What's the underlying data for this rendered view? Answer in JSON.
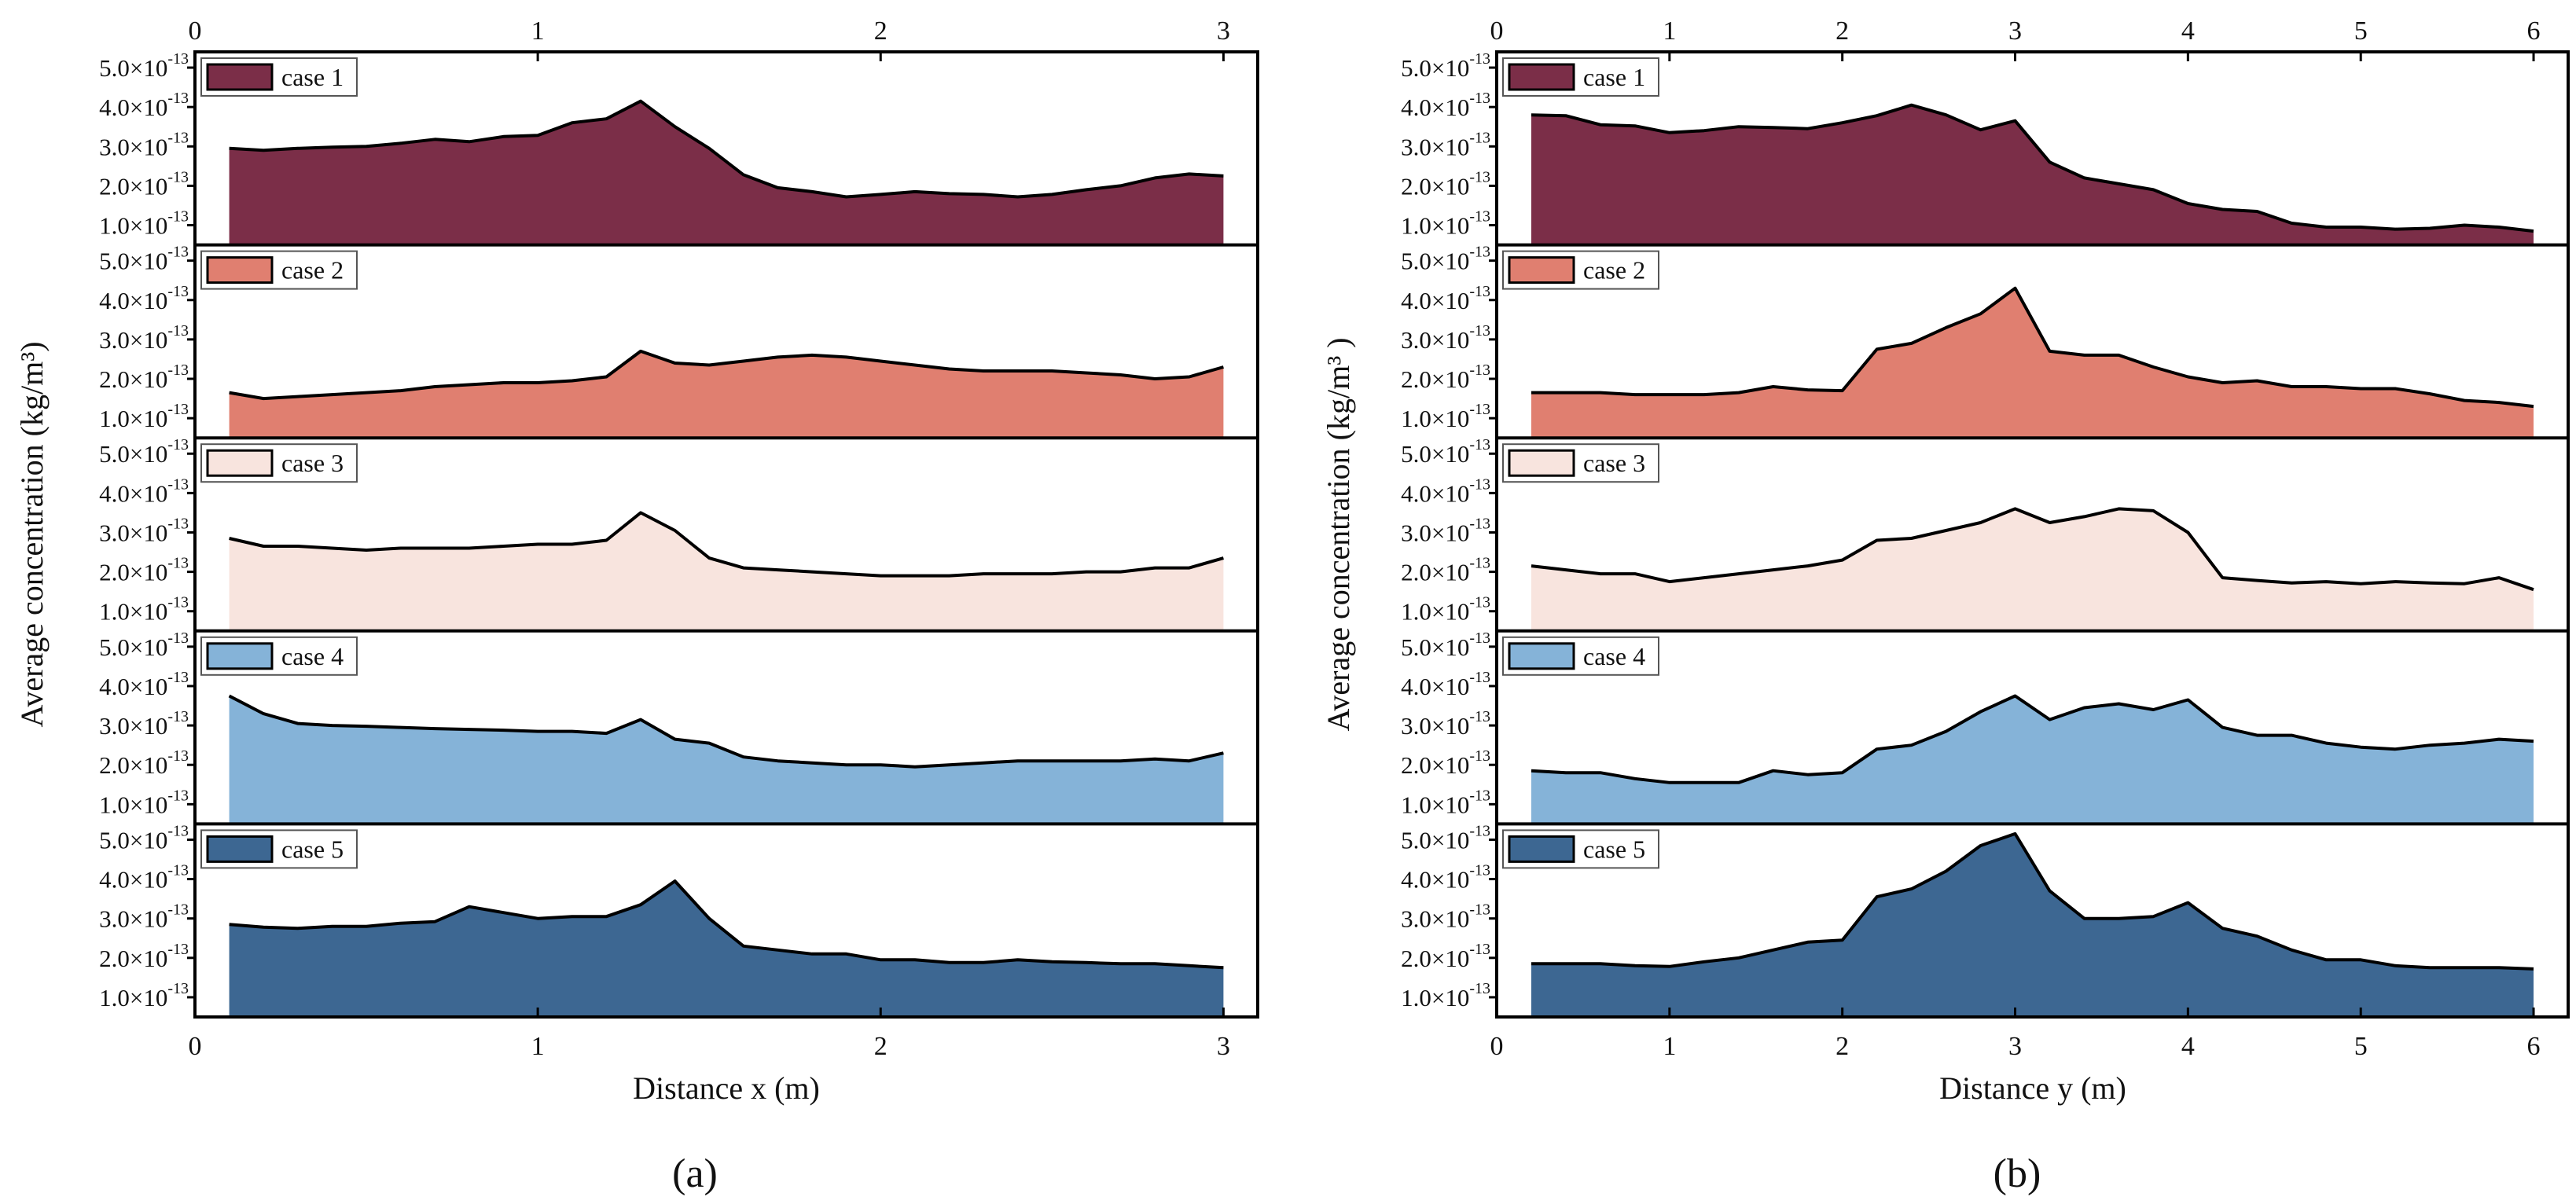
{
  "chart_data": [
    {
      "type": "area",
      "panel_label": "(a)",
      "xlabel": "Distance x (m)",
      "ylabel": "Average concentration (kg/m³)",
      "xlim": [
        0,
        3.1
      ],
      "xticks": [
        "0",
        "1",
        "2",
        "3"
      ],
      "ylim": [
        5e-14,
        5.4e-13
      ],
      "yticks": [
        {
          "mantissa": "1.0×10",
          "exp": "-13"
        },
        {
          "mantissa": "2.0×10",
          "exp": "-13"
        },
        {
          "mantissa": "3.0×10",
          "exp": "-13"
        },
        {
          "mantissa": "4.0×10",
          "exp": "-13"
        },
        {
          "mantissa": "5.0×10",
          "exp": "-13"
        }
      ],
      "x": [
        0.1,
        0.2,
        0.3,
        0.4,
        0.5,
        0.6,
        0.7,
        0.8,
        0.9,
        1.0,
        1.1,
        1.2,
        1.3,
        1.4,
        1.5,
        1.6,
        1.7,
        1.8,
        1.9,
        2.0,
        2.1,
        2.2,
        2.3,
        2.4,
        2.5,
        2.6,
        2.7,
        2.8,
        2.9,
        3.0
      ],
      "series": [
        {
          "name": "case 1",
          "color": "#7b2e48",
          "values": [
            2.95,
            2.9,
            2.95,
            2.98,
            3.0,
            3.08,
            3.18,
            3.12,
            3.25,
            3.28,
            3.6,
            3.7,
            4.15,
            3.5,
            2.95,
            2.28,
            1.95,
            1.85,
            1.72,
            1.78,
            1.85,
            1.8,
            1.78,
            1.72,
            1.78,
            1.9,
            2.0,
            2.2,
            2.3,
            2.25
          ]
        },
        {
          "name": "case 2",
          "color": "#e07f70",
          "values": [
            1.65,
            1.5,
            1.55,
            1.6,
            1.65,
            1.7,
            1.8,
            1.85,
            1.9,
            1.9,
            1.95,
            2.05,
            2.7,
            2.4,
            2.35,
            2.45,
            2.55,
            2.6,
            2.55,
            2.45,
            2.35,
            2.25,
            2.2,
            2.2,
            2.2,
            2.15,
            2.1,
            2.0,
            2.05,
            2.3
          ]
        },
        {
          "name": "case 3",
          "color": "#f8e4de",
          "values": [
            2.85,
            2.65,
            2.65,
            2.6,
            2.55,
            2.6,
            2.6,
            2.6,
            2.65,
            2.7,
            2.7,
            2.8,
            3.5,
            3.05,
            2.35,
            2.1,
            2.05,
            2.0,
            1.95,
            1.9,
            1.9,
            1.9,
            1.95,
            1.95,
            1.95,
            2.0,
            2.0,
            2.1,
            2.1,
            2.35
          ]
        },
        {
          "name": "case 4",
          "color": "#85b3d8",
          "values": [
            3.75,
            3.3,
            3.05,
            3.0,
            2.98,
            2.95,
            2.92,
            2.9,
            2.88,
            2.85,
            2.85,
            2.8,
            3.15,
            2.65,
            2.55,
            2.2,
            2.1,
            2.05,
            2.0,
            2.0,
            1.95,
            2.0,
            2.05,
            2.1,
            2.1,
            2.1,
            2.1,
            2.15,
            2.1,
            2.3
          ]
        },
        {
          "name": "case 5",
          "color": "#3d6792",
          "values": [
            2.85,
            2.78,
            2.75,
            2.8,
            2.8,
            2.88,
            2.92,
            3.3,
            3.15,
            3.0,
            3.05,
            3.05,
            3.35,
            3.95,
            3.0,
            2.3,
            2.2,
            2.1,
            2.1,
            1.95,
            1.95,
            1.88,
            1.88,
            1.95,
            1.9,
            1.88,
            1.85,
            1.85,
            1.8,
            1.75
          ]
        }
      ]
    },
    {
      "type": "area",
      "panel_label": "(b)",
      "xlabel": "Distance y (m)",
      "ylabel": "Average concentration (kg/m³ )",
      "xlim": [
        0,
        6.2
      ],
      "xticks": [
        "0",
        "1",
        "2",
        "3",
        "4",
        "5",
        "6"
      ],
      "ylim": [
        5e-14,
        5.4e-13
      ],
      "yticks": [
        {
          "mantissa": "1.0×10",
          "exp": "-13"
        },
        {
          "mantissa": "2.0×10",
          "exp": "-13"
        },
        {
          "mantissa": "3.0×10",
          "exp": "-13"
        },
        {
          "mantissa": "4.0×10",
          "exp": "-13"
        },
        {
          "mantissa": "5.0×10",
          "exp": "-13"
        }
      ],
      "x": [
        0.2,
        0.4,
        0.6,
        0.8,
        1.0,
        1.2,
        1.4,
        1.6,
        1.8,
        2.0,
        2.2,
        2.4,
        2.6,
        2.8,
        3.0,
        3.2,
        3.4,
        3.6,
        3.8,
        4.0,
        4.2,
        4.4,
        4.6,
        4.8,
        5.0,
        5.2,
        5.4,
        5.6,
        5.8,
        6.0
      ],
      "series": [
        {
          "name": "case 1",
          "color": "#7b2e48",
          "values": [
            3.8,
            3.78,
            3.55,
            3.52,
            3.35,
            3.4,
            3.5,
            3.48,
            3.45,
            3.6,
            3.78,
            4.05,
            3.8,
            3.42,
            3.65,
            2.6,
            2.2,
            2.05,
            1.9,
            1.55,
            1.4,
            1.35,
            1.05,
            0.95,
            0.95,
            0.9,
            0.92,
            1.0,
            0.95,
            0.85
          ]
        },
        {
          "name": "case 2",
          "color": "#e07f70",
          "values": [
            1.65,
            1.65,
            1.65,
            1.6,
            1.6,
            1.6,
            1.65,
            1.8,
            1.72,
            1.7,
            2.75,
            2.9,
            3.3,
            3.65,
            4.3,
            2.7,
            2.6,
            2.6,
            2.3,
            2.05,
            1.9,
            1.95,
            1.8,
            1.8,
            1.75,
            1.75,
            1.62,
            1.45,
            1.4,
            1.3
          ]
        },
        {
          "name": "case 3",
          "color": "#f8e4de",
          "values": [
            2.15,
            2.05,
            1.95,
            1.95,
            1.75,
            1.85,
            1.95,
            2.05,
            2.15,
            2.3,
            2.8,
            2.85,
            3.05,
            3.25,
            3.6,
            3.25,
            3.4,
            3.6,
            3.55,
            3.0,
            1.85,
            1.78,
            1.72,
            1.75,
            1.7,
            1.75,
            1.72,
            1.7,
            1.85,
            1.55
          ]
        },
        {
          "name": "case 4",
          "color": "#85b3d8",
          "values": [
            1.85,
            1.8,
            1.8,
            1.65,
            1.55,
            1.55,
            1.55,
            1.85,
            1.75,
            1.8,
            2.4,
            2.5,
            2.85,
            3.35,
            3.75,
            3.15,
            3.45,
            3.55,
            3.4,
            3.65,
            2.95,
            2.75,
            2.75,
            2.55,
            2.45,
            2.4,
            2.5,
            2.55,
            2.65,
            2.6
          ]
        },
        {
          "name": "case 5",
          "color": "#3d6792",
          "values": [
            1.85,
            1.85,
            1.85,
            1.8,
            1.78,
            1.9,
            2.0,
            2.2,
            2.4,
            2.45,
            3.55,
            3.75,
            4.2,
            4.85,
            5.15,
            3.7,
            3.0,
            3.0,
            3.05,
            3.4,
            2.75,
            2.55,
            2.2,
            1.95,
            1.95,
            1.8,
            1.75,
            1.75,
            1.75,
            1.72
          ]
        }
      ]
    }
  ]
}
